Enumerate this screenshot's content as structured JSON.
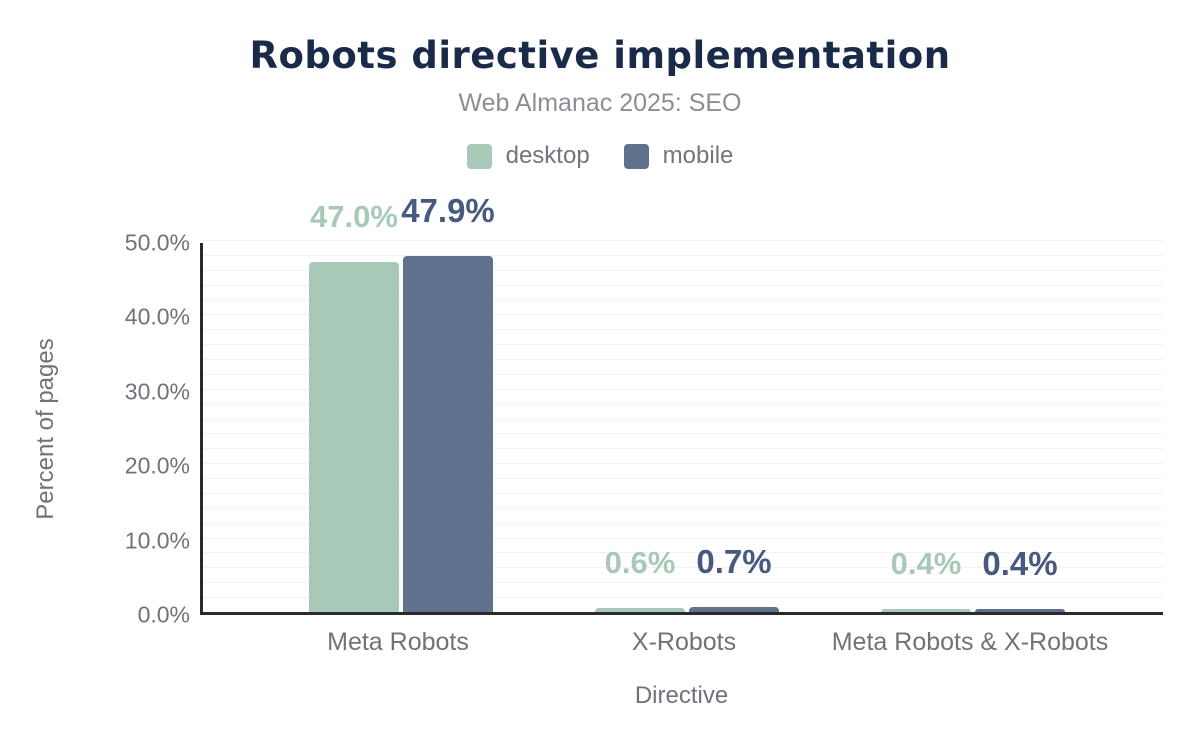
{
  "chart_data": {
    "type": "bar",
    "title": "Robots directive implementation",
    "subtitle": "Web Almanac 2025: SEO",
    "xlabel": "Directive",
    "ylabel": "Percent of pages",
    "categories": [
      "Meta Robots",
      "X-Robots",
      "Meta Robots & X-Robots"
    ],
    "series": [
      {
        "name": "desktop",
        "color": "#a8c9b8",
        "label_color": "#a8c9b8",
        "values": [
          47.0,
          0.6,
          0.4
        ],
        "value_labels": [
          "47.0%",
          "0.6%",
          "0.4%"
        ]
      },
      {
        "name": "mobile",
        "color": "#5f718c",
        "label_color": "#475a7d",
        "values": [
          47.9,
          0.7,
          0.4
        ],
        "value_labels": [
          "47.9%",
          "0.7%",
          "0.4%"
        ]
      }
    ],
    "ylim": [
      0,
      50
    ],
    "yticks": [
      0,
      10,
      20,
      30,
      40,
      50
    ],
    "ytick_labels": [
      "0.0%",
      "10.0%",
      "20.0%",
      "30.0%",
      "40.0%",
      "50.0%"
    ],
    "grid_step": 2,
    "grid": true,
    "legend_position": "top"
  },
  "colors": {
    "title": "#1a2b49",
    "axis_line": "#2b2b2e",
    "tick_text": "#6e737b",
    "gridline": "#f2f2f4"
  }
}
